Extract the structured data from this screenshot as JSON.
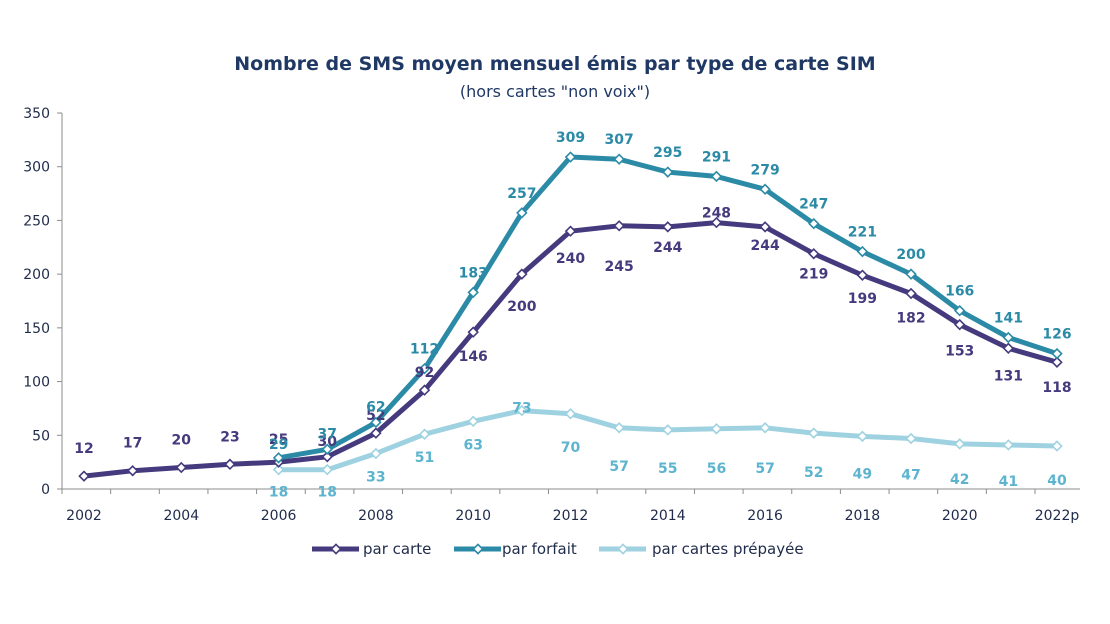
{
  "chart_data": {
    "type": "line",
    "title": "Nombre de SMS moyen mensuel émis par type de carte SIM",
    "subtitle": "(hors cartes \"non voix\")",
    "xlabel": "",
    "ylabel": "",
    "ylim": [
      0,
      350
    ],
    "yticks": [
      "0",
      "50",
      "100",
      "150",
      "200",
      "250",
      "300",
      "350"
    ],
    "xticks": [
      "2002",
      "2004",
      "2006",
      "2008",
      "2010",
      "2012",
      "2014",
      "2016",
      "2018",
      "2020",
      "2022p"
    ],
    "categories": [
      "2002",
      "2003",
      "2004",
      "2005",
      "2006",
      "2007",
      "2008",
      "2009",
      "2010",
      "2011",
      "2012",
      "2013",
      "2014",
      "2015",
      "2016",
      "2017",
      "2018",
      "2019",
      "2020",
      "2021",
      "2022p"
    ],
    "grid": false,
    "legend_position": "bottom",
    "series": [
      {
        "name": "par carte",
        "color": "#443a7d",
        "values": [
          12,
          17,
          20,
          23,
          25,
          30,
          52,
          92,
          146,
          200,
          240,
          245,
          244,
          248,
          244,
          219,
          199,
          182,
          153,
          131,
          118
        ]
      },
      {
        "name": "par forfait",
        "color": "#2b8aa6",
        "values": [
          null,
          null,
          null,
          null,
          29,
          37,
          62,
          112,
          183,
          257,
          309,
          307,
          295,
          291,
          279,
          247,
          221,
          200,
          166,
          141,
          126
        ]
      },
      {
        "name": "par cartes prépayée",
        "color": "#9fd2e1",
        "label_color": "#5db4cf",
        "values": [
          null,
          null,
          null,
          null,
          18,
          18,
          33,
          51,
          63,
          73,
          70,
          57,
          55,
          56,
          57,
          52,
          49,
          47,
          42,
          41,
          40
        ]
      }
    ]
  }
}
